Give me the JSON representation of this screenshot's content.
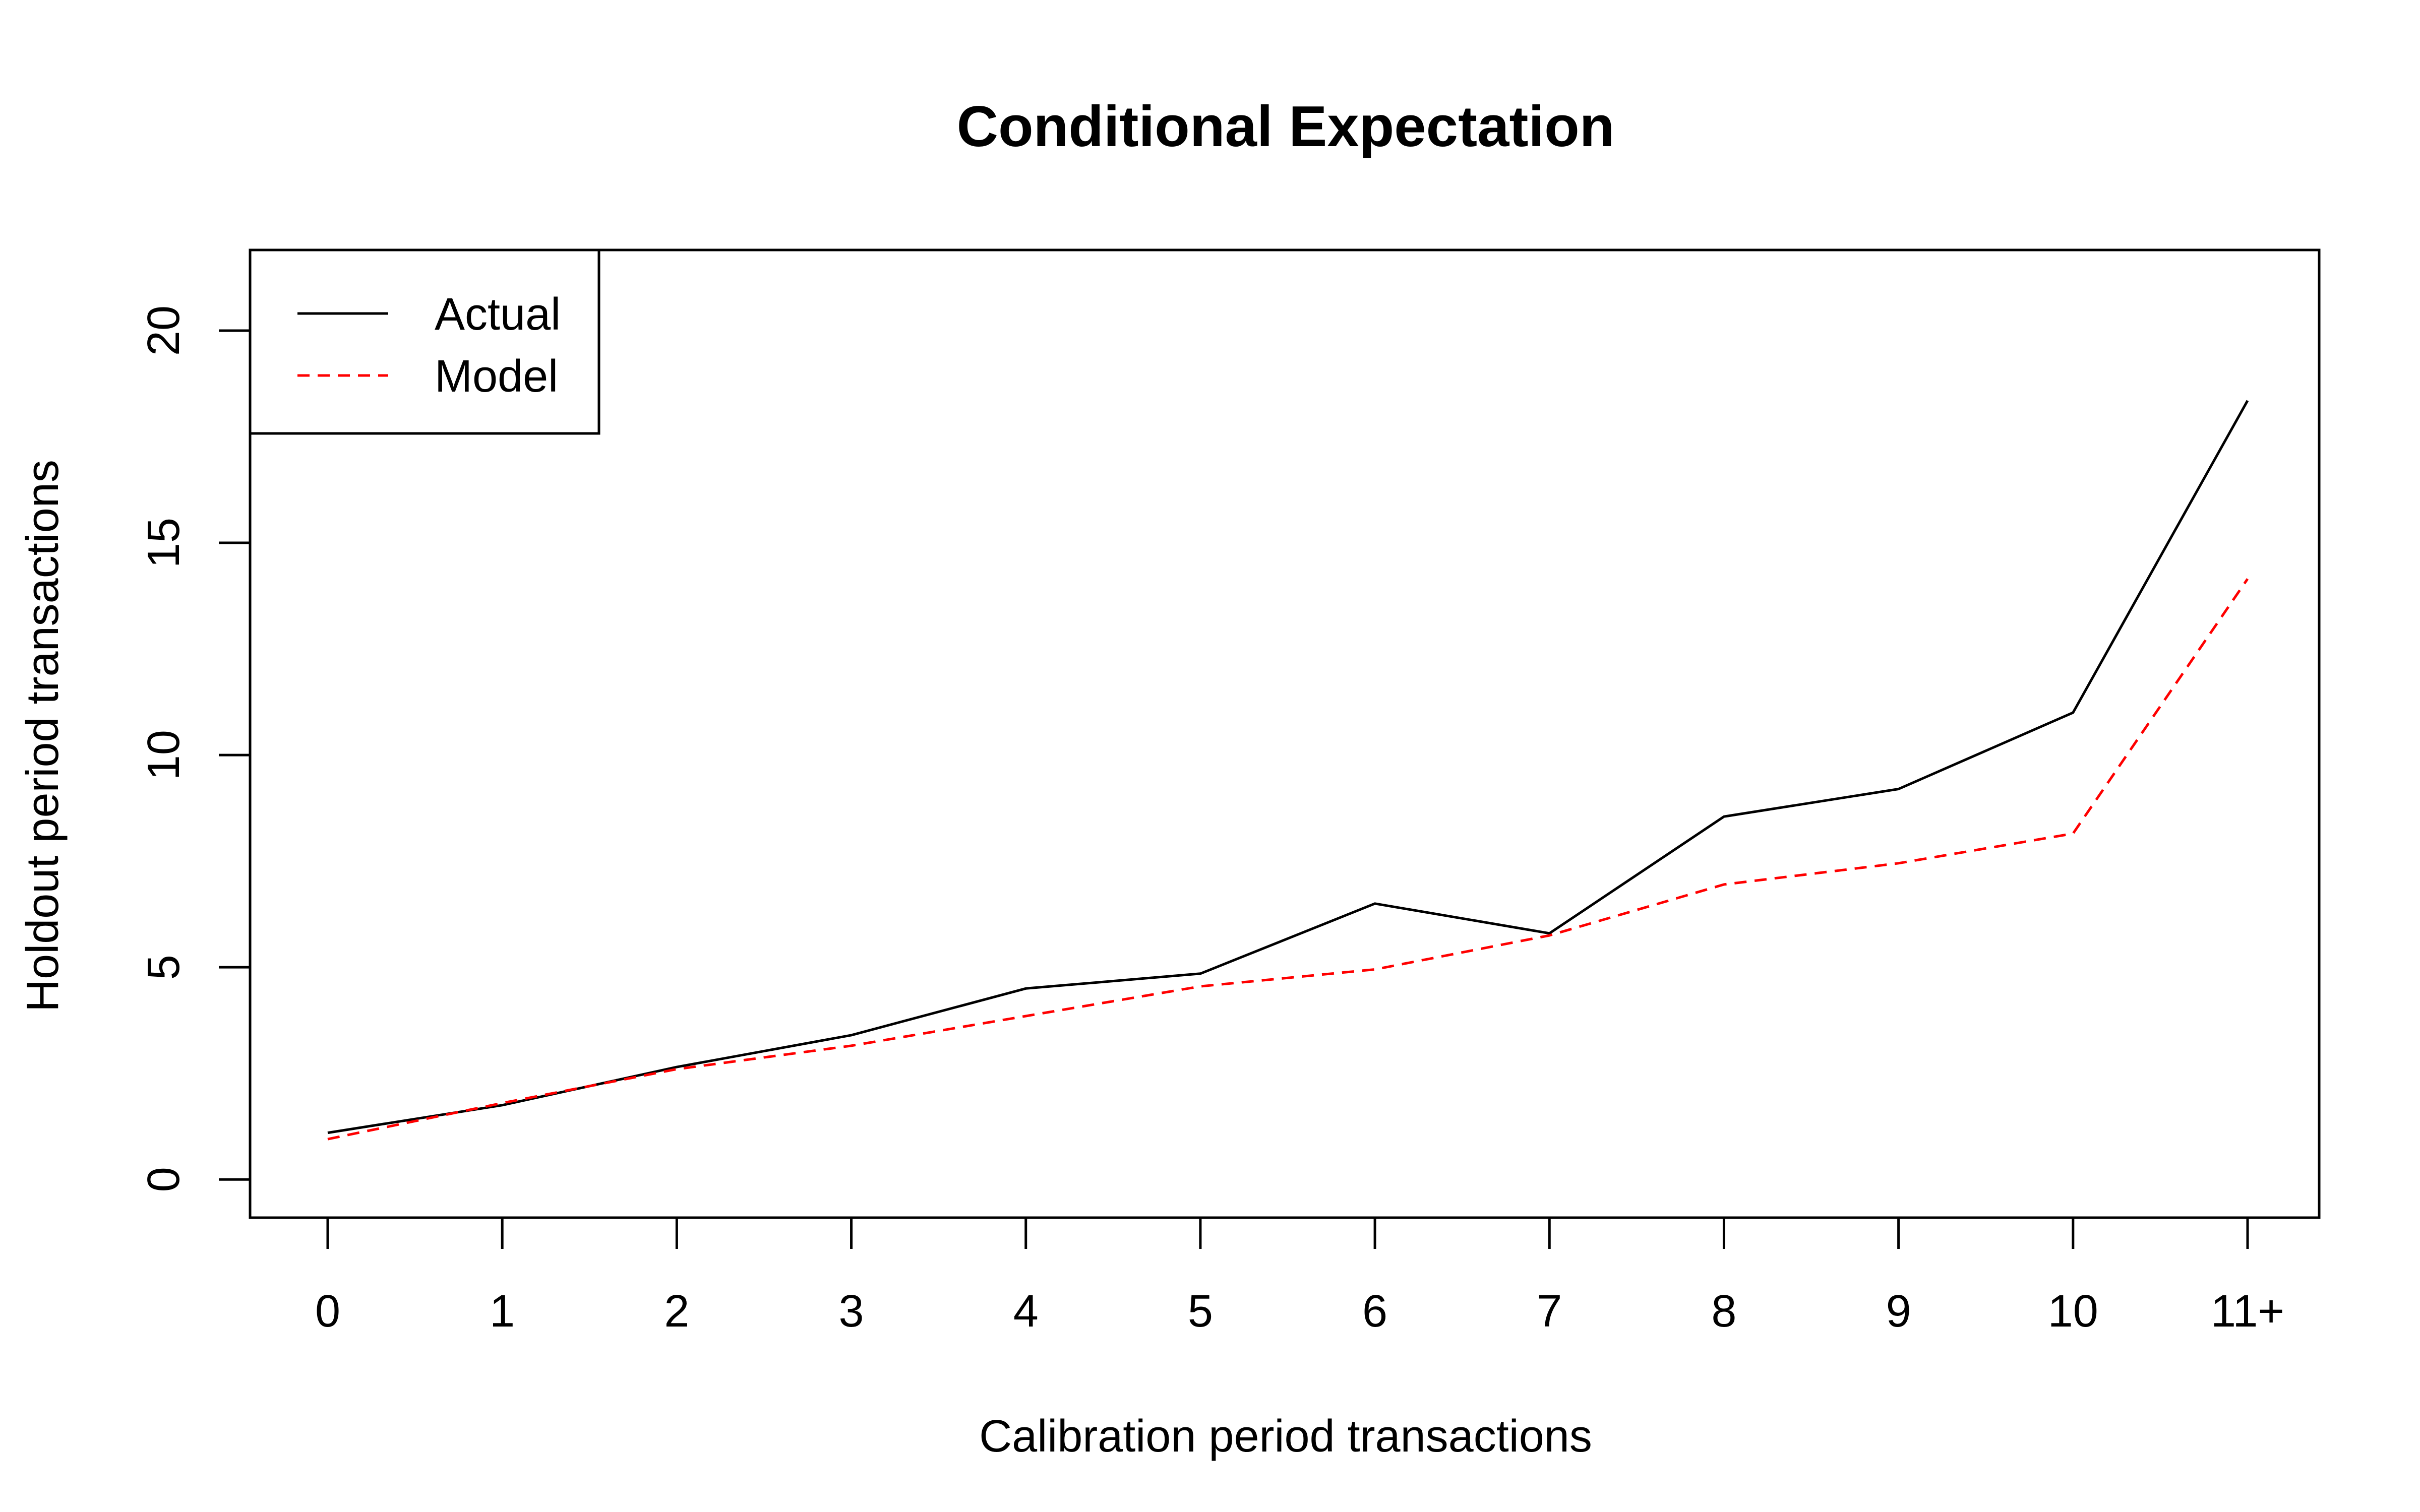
{
  "chart_data": {
    "type": "line",
    "title": "Conditional Expectation",
    "xlabel": "Calibration period transactions",
    "ylabel": "Holdout period transactions",
    "categories": [
      "0",
      "1",
      "2",
      "3",
      "4",
      "5",
      "6",
      "7",
      "8",
      "9",
      "10",
      "11+"
    ],
    "ylim": [
      -0.9,
      21.9
    ],
    "yticks": [
      "0",
      "5",
      "10",
      "15",
      "20"
    ],
    "grid": false,
    "legend_position": "top-left",
    "series": [
      {
        "name": "Actual",
        "color": "#000000",
        "line_style": "solid",
        "values": [
          1.1,
          1.75,
          2.65,
          3.4,
          4.5,
          4.85,
          6.5,
          5.8,
          8.55,
          9.2,
          11.0,
          18.35
        ]
      },
      {
        "name": "Model",
        "color": "#ff0000",
        "line_style": "dashed",
        "values": [
          0.95,
          1.8,
          2.6,
          3.15,
          3.85,
          4.55,
          4.95,
          5.75,
          6.95,
          7.45,
          8.15,
          14.15
        ]
      }
    ]
  }
}
